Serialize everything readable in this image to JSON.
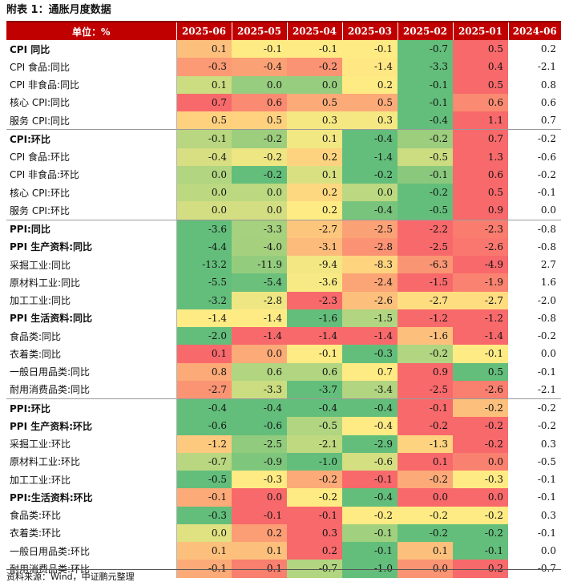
{
  "title": "附表 1：通胀月度数据",
  "header": {
    "unit_label": "单位：%",
    "columns": [
      "2025-06",
      "2025-05",
      "2025-04",
      "2025-03",
      "2025-02",
      "2025-01",
      "2024-06"
    ]
  },
  "groups": [
    {
      "rows": [
        {
          "label": "CPI 同比",
          "level": 0,
          "bold": true,
          "values": [
            "0.1",
            "-0.1",
            "-0.1",
            "-0.1",
            "-0.7",
            "0.5",
            "0.2"
          ]
        },
        {
          "label": "CPI 食品:同比",
          "level": 1,
          "bold": false,
          "values": [
            "-0.3",
            "-0.4",
            "-0.2",
            "-1.4",
            "-3.3",
            "0.4",
            "-2.1"
          ]
        },
        {
          "label": "CPI 非食品:同比",
          "level": 1,
          "bold": false,
          "values": [
            "0.1",
            "0.0",
            "0.0",
            "0.2",
            "-0.1",
            "0.5",
            "0.8"
          ]
        },
        {
          "label": "核心 CPI:同比",
          "level": 1,
          "bold": false,
          "values": [
            "0.7",
            "0.6",
            "0.5",
            "0.5",
            "-0.1",
            "0.6",
            "0.6"
          ]
        },
        {
          "label": "服务 CPI:同比",
          "level": 1,
          "bold": false,
          "values": [
            "0.5",
            "0.5",
            "0.3",
            "0.3",
            "-0.4",
            "1.1",
            "0.7"
          ]
        }
      ]
    },
    {
      "rows": [
        {
          "label": "CPI:环比",
          "level": 0,
          "bold": true,
          "values": [
            "-0.1",
            "-0.2",
            "0.1",
            "-0.4",
            "-0.2",
            "0.7",
            "-0.2"
          ]
        },
        {
          "label": "CPI 食品:环比",
          "level": 1,
          "bold": false,
          "values": [
            "-0.4",
            "-0.2",
            "0.2",
            "-1.4",
            "-0.5",
            "1.3",
            "-0.6"
          ]
        },
        {
          "label": "CPI 非食品:环比",
          "level": 1,
          "bold": false,
          "values": [
            "0.0",
            "-0.2",
            "0.1",
            "-0.2",
            "-0.1",
            "0.6",
            "-0.2"
          ]
        },
        {
          "label": "核心 CPI:环比",
          "level": 1,
          "bold": false,
          "values": [
            "0.0",
            "0.0",
            "0.2",
            "0.0",
            "-0.2",
            "0.5",
            "-0.1"
          ]
        },
        {
          "label": "服务 CPI:环比",
          "level": 1,
          "bold": false,
          "values": [
            "0.0",
            "0.0",
            "0.2",
            "-0.4",
            "-0.5",
            "0.9",
            "0.0"
          ]
        }
      ]
    },
    {
      "rows": [
        {
          "label": "PPI:同比",
          "level": 0,
          "bold": true,
          "values": [
            "-3.6",
            "-3.3",
            "-2.7",
            "-2.5",
            "-2.2",
            "-2.3",
            "-0.8"
          ]
        },
        {
          "label": "PPI 生产资料:同比",
          "level": 1,
          "bold": true,
          "values": [
            "-4.4",
            "-4.0",
            "-3.1",
            "-2.8",
            "-2.5",
            "-2.6",
            "-0.8"
          ]
        },
        {
          "label": "采掘工业:同比",
          "level": 3,
          "bold": false,
          "values": [
            "-13.2",
            "-11.9",
            "-9.4",
            "-8.3",
            "-6.3",
            "-4.9",
            "2.7"
          ]
        },
        {
          "label": "原材料工业:同比",
          "level": 3,
          "bold": false,
          "values": [
            "-5.5",
            "-5.4",
            "-3.6",
            "-2.4",
            "-1.5",
            "-1.9",
            "1.6"
          ]
        },
        {
          "label": "加工工业:同比",
          "level": 3,
          "bold": false,
          "values": [
            "-3.2",
            "-2.8",
            "-2.3",
            "-2.6",
            "-2.7",
            "-2.7",
            "-2.0"
          ]
        },
        {
          "label": "PPI 生活资料:同比",
          "level": 1,
          "bold": true,
          "values": [
            "-1.4",
            "-1.4",
            "-1.6",
            "-1.5",
            "-1.2",
            "-1.2",
            "-0.8"
          ]
        },
        {
          "label": "食品类:同比",
          "level": 2,
          "bold": false,
          "values": [
            "-2.0",
            "-1.4",
            "-1.4",
            "-1.4",
            "-1.6",
            "-1.4",
            "-0.2"
          ]
        },
        {
          "label": "衣着类:同比",
          "level": 2,
          "bold": false,
          "values": [
            "0.1",
            "0.0",
            "-0.1",
            "-0.3",
            "-0.2",
            "-0.1",
            "0.0"
          ]
        },
        {
          "label": "一般日用品类:同比",
          "level": 2,
          "bold": false,
          "values": [
            "0.8",
            "0.6",
            "0.6",
            "0.7",
            "0.9",
            "0.5",
            "-0.1"
          ]
        },
        {
          "label": "耐用消费品类:同比",
          "level": 2,
          "bold": false,
          "values": [
            "-2.7",
            "-3.3",
            "-3.7",
            "-3.4",
            "-2.5",
            "-2.6",
            "-2.1"
          ]
        }
      ]
    },
    {
      "rows": [
        {
          "label": "PPI:环比",
          "level": 0,
          "bold": true,
          "values": [
            "-0.4",
            "-0.4",
            "-0.4",
            "-0.4",
            "-0.1",
            "-0.2",
            "-0.2"
          ]
        },
        {
          "label": "PPI 生产资料:环比",
          "level": 1,
          "bold": true,
          "values": [
            "-0.6",
            "-0.6",
            "-0.5",
            "-0.4",
            "-0.2",
            "-0.2",
            "-0.2"
          ]
        },
        {
          "label": "采掘工业:环比",
          "level": 3,
          "bold": false,
          "values": [
            "-1.2",
            "-2.5",
            "-2.1",
            "-2.9",
            "-1.3",
            "-0.2",
            "0.3"
          ]
        },
        {
          "label": "原材料工业:环比",
          "level": 3,
          "bold": false,
          "values": [
            "-0.7",
            "-0.9",
            "-1.0",
            "-0.6",
            "0.1",
            "0.0",
            "-0.5"
          ]
        },
        {
          "label": "加工工业:环比",
          "level": 3,
          "bold": false,
          "values": [
            "-0.5",
            "-0.3",
            "-0.2",
            "-0.1",
            "-0.2",
            "-0.3",
            "-0.1"
          ]
        },
        {
          "label": "PPI:生活资料:环比",
          "level": 1,
          "bold": true,
          "values": [
            "-0.1",
            "0.0",
            "-0.2",
            "-0.4",
            "0.0",
            "0.0",
            "-0.1"
          ]
        },
        {
          "label": "食品类:环比",
          "level": 2,
          "bold": false,
          "values": [
            "-0.3",
            "-0.1",
            "-0.1",
            "-0.2",
            "-0.2",
            "-0.2",
            "0.3"
          ]
        },
        {
          "label": "衣着类:环比",
          "level": 2,
          "bold": false,
          "values": [
            "0.0",
            "0.2",
            "0.3",
            "-0.1",
            "-0.2",
            "-0.2",
            "-0.1"
          ]
        },
        {
          "label": "一般日用品类:环比",
          "level": 2,
          "bold": false,
          "values": [
            "0.1",
            "0.1",
            "0.2",
            "-0.1",
            "0.1",
            "-0.1",
            "0.0"
          ]
        },
        {
          "label": "耐用消费品类:环比",
          "level": 2,
          "bold": false,
          "values": [
            "-0.1",
            "0.1",
            "-0.7",
            "-1.0",
            "0.0",
            "0.2",
            "-0.7"
          ]
        }
      ]
    }
  ],
  "colors": {
    "low": "#63be7b",
    "mid": "#ffeb84",
    "high": "#f8696b",
    "header_bg": "#c00000",
    "title_rule": "#8b0000"
  },
  "source": "资料来源：Wind，中证鹏元整理"
}
